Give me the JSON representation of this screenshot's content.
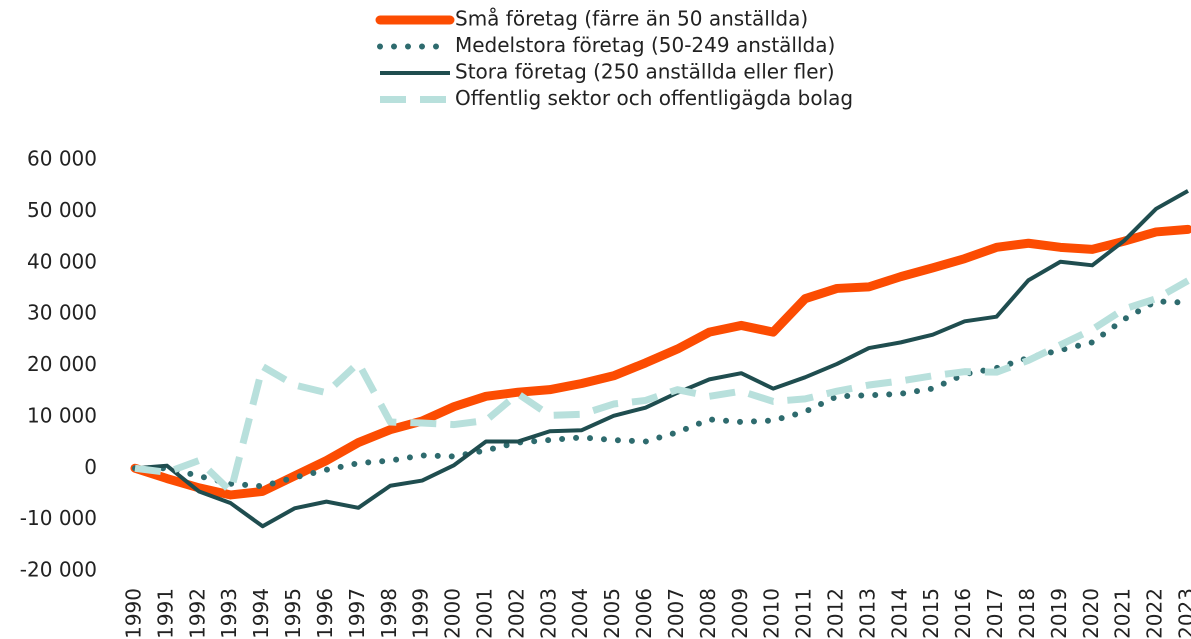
{
  "chart_data": {
    "type": "line",
    "categories": [
      "1990",
      "1991",
      "1992",
      "1993",
      "1994",
      "1995",
      "1996",
      "1997",
      "1998",
      "1999",
      "2000",
      "2001",
      "2002",
      "2003",
      "2004",
      "2005",
      "2006",
      "2007",
      "2008",
      "2009",
      "2010",
      "2011",
      "2012",
      "2013",
      "2014",
      "2015",
      "2016",
      "2017",
      "2018",
      "2019",
      "2020",
      "2021",
      "2022",
      "2023"
    ],
    "series": [
      {
        "name": "Små företag (färre än 50 anställda)",
        "color": "#fc4c02",
        "style": "solid",
        "values": [
          0,
          -2000,
          -3800,
          -5200,
          -4500,
          -1500,
          1500,
          5000,
          7500,
          9200,
          12000,
          14000,
          14800,
          15300,
          16500,
          18000,
          20500,
          23200,
          26500,
          27800,
          26500,
          33000,
          35000,
          35300,
          37300,
          39000,
          40800,
          43000,
          43800,
          43000,
          42600,
          44200,
          46000,
          46500
        ]
      },
      {
        "name": "Medelstora företag (50-249 anställda)",
        "color": "#2e6b6e",
        "style": "dotted",
        "values": [
          0,
          0,
          -1500,
          -3000,
          -3500,
          -1800,
          -300,
          1000,
          1500,
          2500,
          2300,
          3500,
          5000,
          5500,
          6000,
          5500,
          5200,
          7000,
          9500,
          9000,
          9300,
          11000,
          14000,
          14200,
          14500,
          15500,
          18300,
          19500,
          21500,
          23000,
          24500,
          29000,
          32500,
          32200
        ]
      },
      {
        "name": "Stora företag (250 anställda eller fler)",
        "color": "#1f4d4f",
        "style": "solid-thin",
        "values": [
          0,
          500,
          -4500,
          -6800,
          -11300,
          -7800,
          -6500,
          -7700,
          -3400,
          -2400,
          600,
          5200,
          5200,
          7200,
          7400,
          10200,
          11800,
          14700,
          17300,
          18500,
          15500,
          17700,
          20300,
          23400,
          24500,
          26000,
          28600,
          29500,
          36600,
          40200,
          39500,
          44300,
          50500,
          54000
        ]
      },
      {
        "name": "Offentlig sektor och offentligägda bolag",
        "color": "#b8e0dc",
        "style": "dashed",
        "values": [
          0,
          -800,
          1500,
          -4500,
          19800,
          16200,
          14700,
          20500,
          9000,
          8800,
          8500,
          9300,
          14500,
          10300,
          10500,
          12500,
          13200,
          15300,
          14000,
          15000,
          13000,
          13500,
          15000,
          16200,
          17000,
          18000,
          18800,
          18700,
          21000,
          24000,
          27000,
          31000,
          33000,
          36500
        ]
      }
    ],
    "ylim": [
      -20000,
      60000
    ],
    "yticks": [
      {
        "value": -20000,
        "label": "-20 000"
      },
      {
        "value": -10000,
        "label": "-10 000"
      },
      0,
      {
        "value": 10000,
        "label": "10 000"
      },
      {
        "value": 20000,
        "label": "20 000"
      },
      {
        "value": 30000,
        "label": "30 000"
      },
      {
        "value": 40000,
        "label": "40 000"
      },
      {
        "value": 50000,
        "label": "50 000"
      },
      {
        "value": 60000,
        "label": "60 000"
      }
    ],
    "grid": false,
    "legend": "top"
  }
}
